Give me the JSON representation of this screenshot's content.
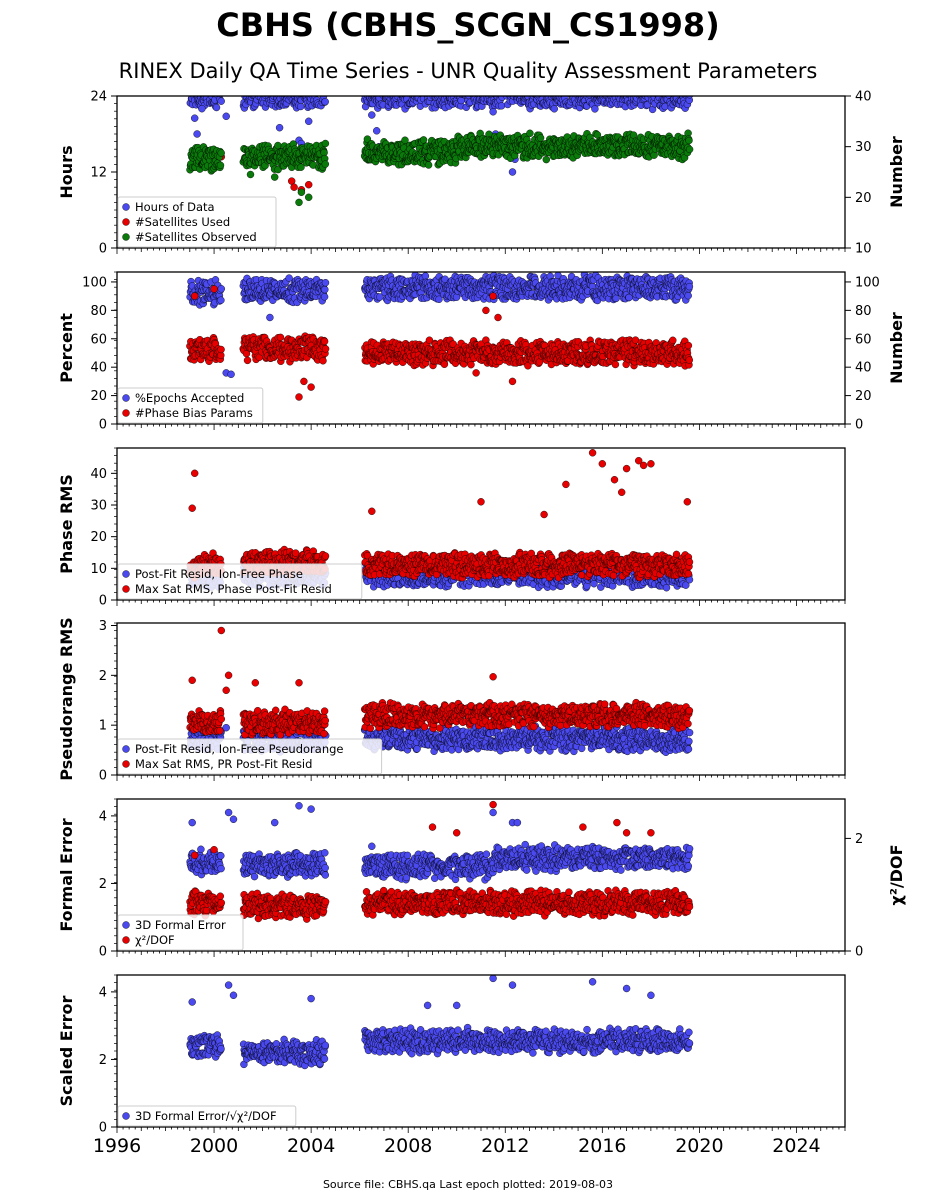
{
  "figure": {
    "title": "CBHS (CBHS_SCGN_CS1998)",
    "subtitle": "RINEX Daily QA Time Series - UNR Quality Assessment Parameters",
    "footer": "Source file: CBHS.qa Last epoch plotted: 2019-08-03",
    "x_ticks": [
      "1996",
      "2000",
      "2004",
      "2008",
      "2012",
      "2016",
      "2020",
      "2024"
    ],
    "x_range": [
      1996,
      2026
    ]
  },
  "colors": {
    "blue": "#4a4af0",
    "red": "#e80000",
    "green": "#0a7a0a",
    "edge": "#000000"
  },
  "chart_data": [
    {
      "type": "scatter",
      "ylabel": "Hours",
      "ylabel_right": "Number",
      "ylim": [
        0,
        24
      ],
      "yticks": [
        "0",
        "12",
        "24"
      ],
      "ylim_right": [
        10,
        40
      ],
      "yticks_right": [
        "10",
        "20",
        "30",
        "40"
      ],
      "legend": [
        "Hours of Data",
        "#Satellites Used",
        "#Satellites Observed"
      ],
      "legend_position": "lower-left",
      "series": [
        {
          "name": "Hours of Data",
          "axis": "left",
          "color": "blue",
          "segments": [
            [
              1999.0,
              2000.3,
              24
            ],
            [
              2001.2,
              2004.6,
              24
            ],
            [
              2006.2,
              2019.6,
              24
            ]
          ],
          "points": [
            [
              1999.2,
              20.5
            ],
            [
              1999.3,
              18.0
            ],
            [
              1999.5,
              22.0
            ],
            [
              2000.5,
              20.8
            ],
            [
              2002.7,
              19.0
            ],
            [
              2003.5,
              17.0
            ],
            [
              2003.6,
              16.5
            ],
            [
              2003.9,
              20.0
            ],
            [
              2006.5,
              21.0
            ],
            [
              2006.7,
              18.5
            ],
            [
              2006.8,
              16.0
            ],
            [
              2011.5,
              21.5
            ],
            [
              2011.6,
              18.0
            ],
            [
              2012.3,
              12.0
            ],
            [
              2012.4,
              14.0
            ]
          ]
        },
        {
          "name": "#Satellites Used",
          "axis": "right",
          "color": "red",
          "points": [
            [
              2000.3,
              28.0
            ],
            [
              2003.2,
              23.2
            ],
            [
              2003.6,
              21.5
            ],
            [
              2003.9,
              22.5
            ],
            [
              2003.3,
              22.0
            ]
          ]
        },
        {
          "name": "#Satellites Observed",
          "axis": "right",
          "color": "green",
          "segments": [
            [
              1999.0,
              2000.3,
              27.5
            ],
            [
              2001.2,
              2004.6,
              28.0
            ],
            [
              2006.2,
              2010.0,
              29.0
            ],
            [
              2010.0,
              2019.6,
              30.0
            ]
          ],
          "points": [
            [
              2003.5,
              19.0
            ],
            [
              2003.6,
              21.0
            ],
            [
              2003.9,
              20.0
            ],
            [
              2002.5,
              24.0
            ],
            [
              2001.5,
              24.5
            ]
          ]
        }
      ]
    },
    {
      "type": "scatter",
      "ylabel": "Percent",
      "ylabel_right": "Number",
      "ylim": [
        0,
        107
      ],
      "yticks": [
        "0",
        "20",
        "40",
        "60",
        "80",
        "100"
      ],
      "ylim_right": [
        0,
        107
      ],
      "yticks_right": [
        "0",
        "20",
        "40",
        "60",
        "80",
        "100"
      ],
      "legend": [
        "%Epochs Accepted",
        "#Phase Bias Params"
      ],
      "legend_position": "lower-left",
      "series": [
        {
          "name": "%Epochs Accepted",
          "axis": "left",
          "color": "blue",
          "segments": [
            [
              1999.0,
              2000.3,
              93
            ],
            [
              2001.2,
              2004.6,
              94
            ],
            [
              2006.2,
              2019.6,
              96
            ]
          ],
          "points": [
            [
              2000.5,
              36
            ],
            [
              2000.7,
              35
            ],
            [
              2002.3,
              75
            ]
          ]
        },
        {
          "name": "#Phase Bias Params",
          "axis": "right",
          "color": "red",
          "segments": [
            [
              1999.0,
              2000.3,
              52
            ],
            [
              2001.2,
              2004.6,
              53
            ],
            [
              2006.2,
              2019.6,
              50
            ]
          ],
          "points": [
            [
              1999.2,
              90
            ],
            [
              2000.0,
              95
            ],
            [
              2003.5,
              19
            ],
            [
              2003.7,
              30
            ],
            [
              2004.0,
              26
            ],
            [
              2011.5,
              90
            ],
            [
              2011.7,
              75
            ],
            [
              2012.3,
              30
            ],
            [
              2010.8,
              36
            ],
            [
              2011.2,
              80
            ]
          ]
        }
      ]
    },
    {
      "type": "scatter",
      "ylabel": "Phase RMS",
      "ylim": [
        0,
        48
      ],
      "yticks": [
        "0",
        "10",
        "20",
        "30",
        "40"
      ],
      "legend": [
        "Post-Fit Resid, Ion-Free Phase",
        "Max Sat RMS, Phase Post-Fit Resid"
      ],
      "legend_position": "lower-left",
      "series": [
        {
          "name": "Post-Fit Resid, Ion-Free Phase",
          "axis": "left",
          "color": "blue",
          "segments": [
            [
              1999.0,
              2000.3,
              8
            ],
            [
              2001.2,
              2004.6,
              8
            ],
            [
              2006.2,
              2019.6,
              8
            ]
          ]
        },
        {
          "name": "Max Sat RMS, Phase Post-Fit Resid",
          "axis": "left",
          "color": "red",
          "segments": [
            [
              1999.0,
              2000.3,
              11
            ],
            [
              2001.2,
              2004.6,
              12
            ],
            [
              2006.2,
              2019.6,
              11
            ]
          ],
          "points": [
            [
              1999.2,
              40
            ],
            [
              1999.1,
              29
            ],
            [
              2006.5,
              28
            ],
            [
              2011.0,
              31
            ],
            [
              2014.5,
              36.5
            ],
            [
              2015.6,
              46.5
            ],
            [
              2016.0,
              43
            ],
            [
              2016.5,
              38
            ],
            [
              2017.0,
              41.5
            ],
            [
              2017.5,
              44
            ],
            [
              2017.7,
              42.5
            ],
            [
              2018.0,
              43
            ],
            [
              2019.5,
              31
            ],
            [
              2016.8,
              34
            ],
            [
              2013.6,
              27
            ]
          ]
        }
      ]
    },
    {
      "type": "scatter",
      "ylabel": "Pseudorange RMS",
      "ylim": [
        0,
        3.05
      ],
      "yticks": [
        "0",
        "1",
        "2",
        "3"
      ],
      "legend": [
        "Post-Fit Resid, Ion-Free Pseudorange",
        "Max Sat RMS, PR Post-Fit Resid"
      ],
      "legend_position": "lower-left",
      "series": [
        {
          "name": "Post-Fit Resid, Ion-Free Pseudorange",
          "axis": "left",
          "color": "blue",
          "segments": [
            [
              1999.0,
              2000.3,
              0.75
            ],
            [
              2001.2,
              2004.6,
              0.72
            ],
            [
              2006.2,
              2019.6,
              0.72
            ]
          ],
          "points": [
            [
              2000.5,
              0.95
            ]
          ]
        },
        {
          "name": "Max Sat RMS, PR Post-Fit Resid",
          "axis": "left",
          "color": "red",
          "segments": [
            [
              1999.0,
              2000.3,
              1.05
            ],
            [
              2001.2,
              2004.6,
              1.05
            ],
            [
              2006.2,
              2019.6,
              1.2
            ]
          ],
          "points": [
            [
              2000.3,
              2.9
            ],
            [
              2000.6,
              2.0
            ],
            [
              1999.1,
              1.9
            ],
            [
              2001.7,
              1.85
            ],
            [
              2003.5,
              1.85
            ],
            [
              2011.5,
              1.97
            ],
            [
              2000.5,
              1.7
            ]
          ]
        }
      ]
    },
    {
      "type": "scatter",
      "ylabel": "Formal Error",
      "ylabel_right": "χ²/DOF",
      "ylim": [
        0,
        4.5
      ],
      "yticks": [
        "0",
        "2",
        "4"
      ],
      "ylim_right": [
        0,
        2.7
      ],
      "yticks_right": [
        "0",
        "2"
      ],
      "legend": [
        "3D Formal Error",
        "χ²/DOF"
      ],
      "legend_position": "lower-left",
      "series": [
        {
          "name": "3D Formal Error",
          "axis": "left",
          "color": "blue",
          "segments": [
            [
              1999.0,
              2000.3,
              2.65
            ],
            [
              2001.2,
              2004.6,
              2.55
            ],
            [
              2006.2,
              2011.5,
              2.5
            ],
            [
              2011.5,
              2019.6,
              2.75
            ]
          ],
          "points": [
            [
              1999.1,
              3.8
            ],
            [
              2000.6,
              4.1
            ],
            [
              2000.8,
              3.9
            ],
            [
              2003.5,
              4.3
            ],
            [
              2004.0,
              4.2
            ],
            [
              2006.5,
              3.1
            ],
            [
              2011.5,
              4.1
            ],
            [
              2012.3,
              3.8
            ],
            [
              2012.5,
              3.8
            ],
            [
              2002.5,
              3.8
            ]
          ]
        },
        {
          "name": "χ²/DOF",
          "axis": "right",
          "color": "red",
          "segments": [
            [
              1999.0,
              2000.3,
              0.85
            ],
            [
              2001.2,
              2004.6,
              0.8
            ],
            [
              2006.2,
              2019.6,
              0.85
            ]
          ],
          "points": [
            [
              2011.5,
              2.6
            ],
            [
              2009.0,
              2.2
            ],
            [
              2010.0,
              2.1
            ],
            [
              2016.6,
              2.28
            ],
            [
              2017.0,
              2.1
            ],
            [
              2018.0,
              2.1
            ],
            [
              2015.2,
              2.2
            ],
            [
              1999.2,
              1.7
            ],
            [
              2000.0,
              1.8
            ]
          ]
        }
      ]
    },
    {
      "type": "scatter",
      "ylabel": "Scaled Error",
      "ylim": [
        0,
        4.5
      ],
      "yticks": [
        "0",
        "2",
        "4"
      ],
      "legend": [
        "3D Formal Error/√χ²/DOF"
      ],
      "legend_position": "lower-left",
      "series": [
        {
          "name": "3D Formal Error/√χ²/DOF",
          "axis": "left",
          "color": "blue",
          "segments": [
            [
              1999.0,
              2000.3,
              2.4
            ],
            [
              2001.2,
              2004.6,
              2.2
            ],
            [
              2006.2,
              2019.6,
              2.55
            ]
          ],
          "points": [
            [
              1999.1,
              3.7
            ],
            [
              2000.6,
              4.2
            ],
            [
              2000.8,
              3.9
            ],
            [
              2004.0,
              3.8
            ],
            [
              2011.5,
              4.4
            ],
            [
              2012.3,
              4.2
            ],
            [
              2015.6,
              4.3
            ],
            [
              2017.0,
              4.1
            ],
            [
              2018.0,
              3.9
            ],
            [
              2008.8,
              3.6
            ],
            [
              2010.0,
              3.6
            ]
          ]
        }
      ]
    }
  ]
}
